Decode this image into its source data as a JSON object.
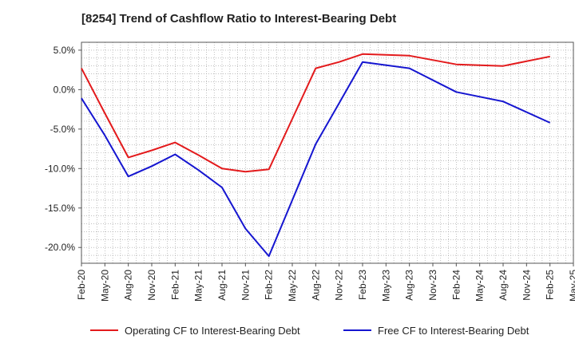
{
  "chart_data": {
    "type": "line",
    "title": "[8254]  Trend of Cashflow Ratio to Interest-Bearing Debt",
    "x": [
      "Feb-20",
      "May-20",
      "Aug-20",
      "Nov-20",
      "Feb-21",
      "May-21",
      "Aug-21",
      "Nov-21",
      "Feb-22",
      "May-22",
      "Aug-22",
      "Nov-22",
      "Feb-23",
      "May-23",
      "Aug-23",
      "Nov-23",
      "Feb-24",
      "May-24",
      "Aug-24",
      "Nov-24",
      "Feb-25",
      "May-25"
    ],
    "xlabel": "",
    "ylabel": "",
    "ylim": [
      -22,
      6
    ],
    "yticks": [
      5,
      0,
      -5,
      -10,
      -15,
      -20
    ],
    "ytick_labels": [
      "5.0%",
      "0.0%",
      "-5.0%",
      "-10.0%",
      "-15.0%",
      "-20.0%"
    ],
    "grid": true,
    "legend_position": "bottom",
    "series": [
      {
        "name": "Operating CF to Interest-Bearing Debt",
        "color": "#e31a1c",
        "values": [
          2.7,
          -3.0,
          -8.6,
          -7.7,
          -6.7,
          -8.3,
          -10.0,
          -10.4,
          -10.1,
          -3.7,
          2.7,
          3.5,
          4.5,
          null,
          4.3,
          null,
          3.2,
          null,
          3.0,
          null,
          4.2,
          null
        ]
      },
      {
        "name": "Free CF to Interest-Bearing Debt",
        "color": "#1515d0",
        "values": [
          -1.1,
          -5.8,
          -11.0,
          -9.7,
          -8.2,
          -10.2,
          -12.4,
          -17.6,
          -21.1,
          -14.0,
          -6.9,
          -1.7,
          3.5,
          null,
          2.7,
          null,
          -0.3,
          null,
          -1.5,
          null,
          -4.2,
          null
        ]
      }
    ]
  }
}
